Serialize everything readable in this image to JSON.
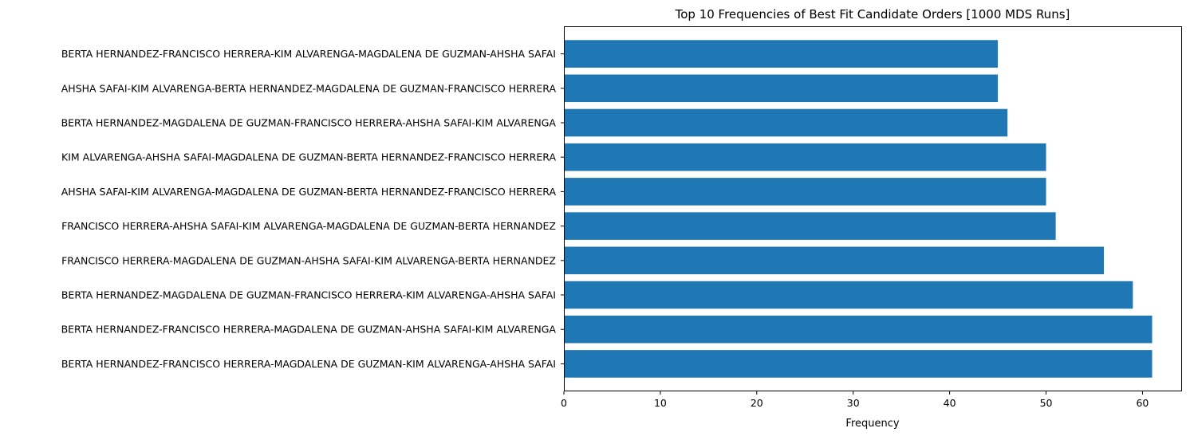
{
  "chart_data": {
    "type": "bar",
    "orientation": "horizontal",
    "title": "Top 10 Frequencies of Best Fit Candidate Orders [1000 MDS Runs]",
    "xlabel": "Frequency",
    "ylabel": "",
    "xlim": [
      0,
      64.1
    ],
    "xticks": [
      0,
      10,
      20,
      30,
      40,
      50,
      60
    ],
    "grid": false,
    "bar_color": "#1f77b4",
    "categories": [
      "BERTA HERNANDEZ-FRANCISCO HERRERA-MAGDALENA DE GUZMAN-KIM ALVARENGA-AHSHA SAFAI",
      "BERTA HERNANDEZ-FRANCISCO HERRERA-MAGDALENA DE GUZMAN-AHSHA SAFAI-KIM ALVARENGA",
      "BERTA HERNANDEZ-MAGDALENA DE GUZMAN-FRANCISCO HERRERA-KIM ALVARENGA-AHSHA SAFAI",
      "FRANCISCO HERRERA-MAGDALENA DE GUZMAN-AHSHA SAFAI-KIM ALVARENGA-BERTA HERNANDEZ",
      "FRANCISCO HERRERA-AHSHA SAFAI-KIM ALVARENGA-MAGDALENA DE GUZMAN-BERTA HERNANDEZ",
      "AHSHA SAFAI-KIM ALVARENGA-MAGDALENA DE GUZMAN-BERTA HERNANDEZ-FRANCISCO HERRERA",
      "KIM ALVARENGA-AHSHA SAFAI-MAGDALENA DE GUZMAN-BERTA HERNANDEZ-FRANCISCO HERRERA",
      "BERTA HERNANDEZ-MAGDALENA DE GUZMAN-FRANCISCO HERRERA-AHSHA SAFAI-KIM ALVARENGA",
      "AHSHA SAFAI-KIM ALVARENGA-BERTA HERNANDEZ-MAGDALENA DE GUZMAN-FRANCISCO HERRERA",
      "BERTA HERNANDEZ-FRANCISCO HERRERA-KIM ALVARENGA-MAGDALENA DE GUZMAN-AHSHA SAFAI"
    ],
    "values": [
      61,
      61,
      59,
      56,
      51,
      50,
      50,
      46,
      45,
      45
    ]
  }
}
